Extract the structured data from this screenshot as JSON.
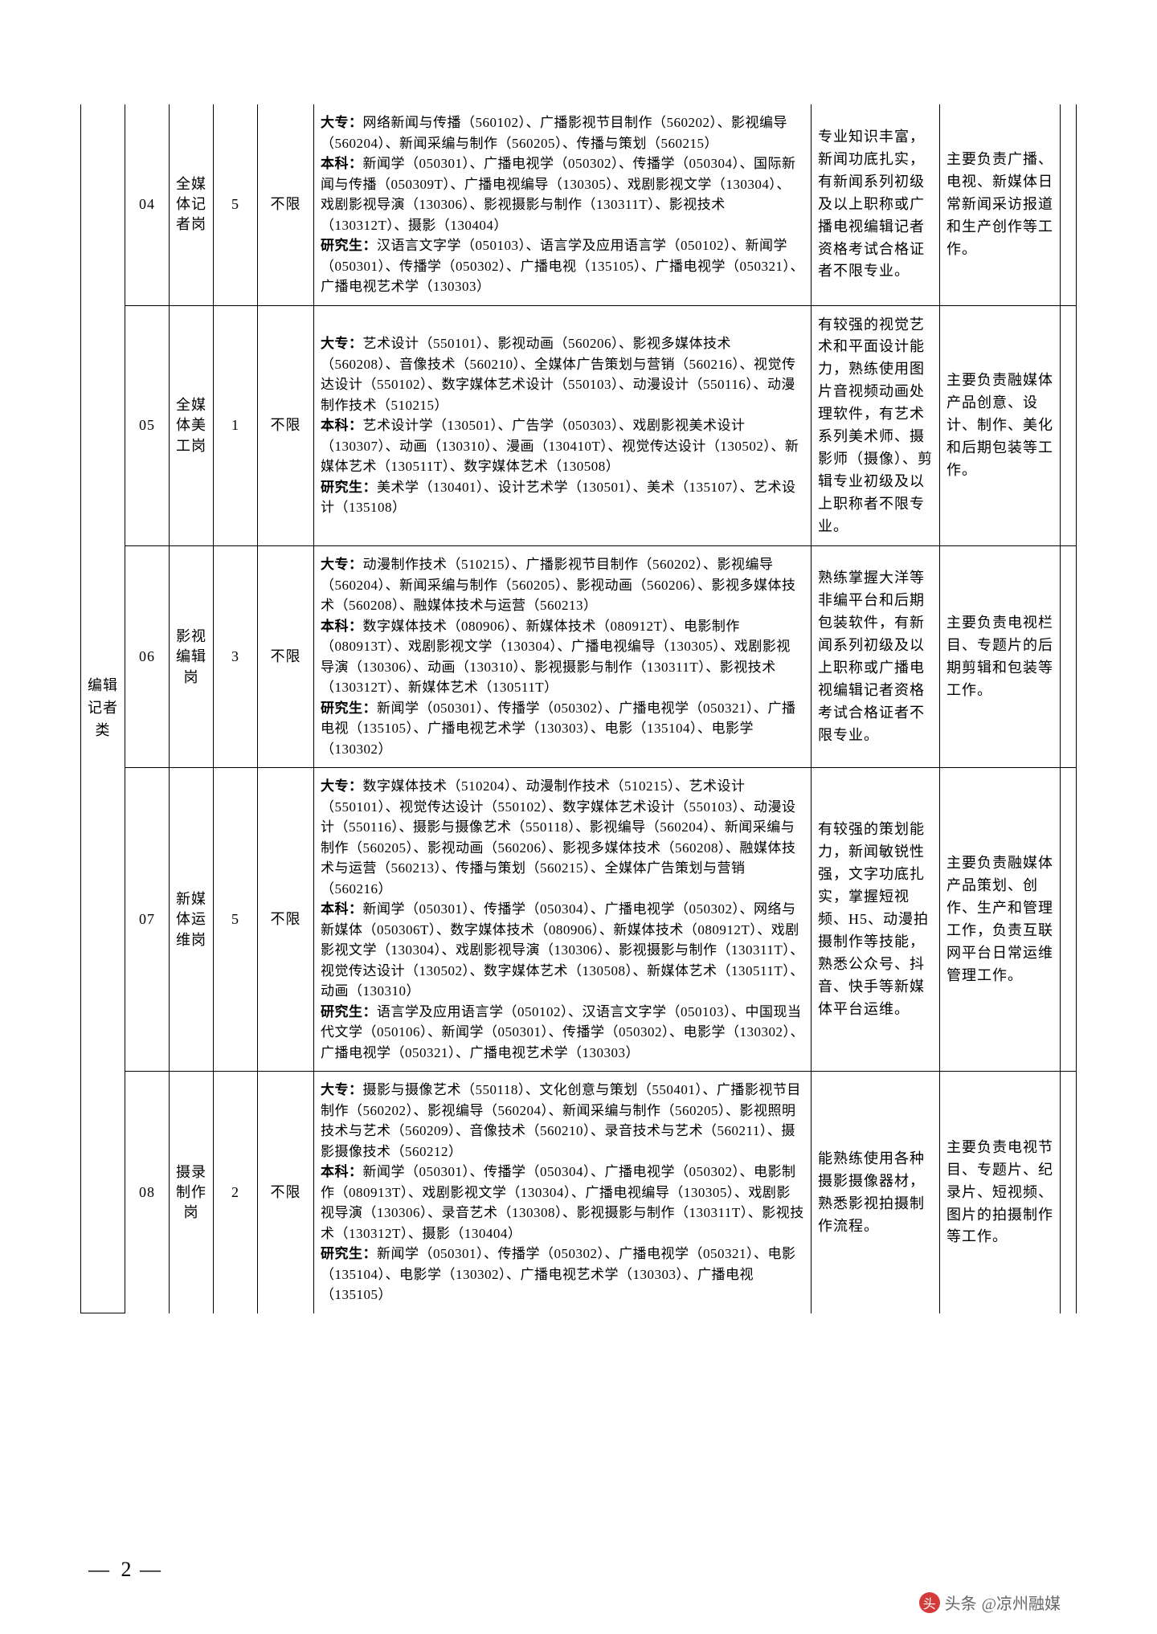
{
  "page_number": "2",
  "watermark": {
    "icon_text": "头",
    "label": "头条",
    "handle": "@凉州融媒"
  },
  "category_label": "编辑记者类",
  "colors": {
    "border": "#000000",
    "text": "#000000",
    "bg": "#ffffff",
    "wm_icon_bg": "#d43c3c",
    "wm_text": "#666666"
  },
  "labels": {
    "dazhuan": "大专：",
    "benke": "本科：",
    "yanjiusheng": "研究生："
  },
  "rows": [
    {
      "code": "04",
      "post": "全媒体记者岗",
      "num": "5",
      "gender": "不限",
      "major_dz": "网络新闻与传播（560102）、广播影视节目制作（560202）、影视编导（560204）、新闻采编与制作（560205）、传播与策划（560215）",
      "major_bk": "新闻学（050301）、广播电视学（050302）、传播学（050304）、国际新闻与传播（050309T）、广播电视编导（130305）、戏剧影视文学（130304）、戏剧影视导演（130306）、影视摄影与制作（130311T）、影视技术（130312T）、摄影（130404）",
      "major_yj": "汉语言文字学（050103）、语言学及应用语言学（050102）、新闻学（050301）、传播学（050302）、广播电视（135105）、广播电视学（050321）、广播电视艺术学（130303）",
      "req": "专业知识丰富，新闻功底扎实，有新闻系列初级及以上职称或广播电视编辑记者资格考试合格证者不限专业。",
      "duty": "主要负责广播、电视、新媒体日常新闻采访报道和生产创作等工作。"
    },
    {
      "code": "05",
      "post": "全媒体美工岗",
      "num": "1",
      "gender": "不限",
      "major_dz": "艺术设计（550101）、影视动画（560206）、影视多媒体技术（560208）、音像技术（560210）、全媒体广告策划与营销（560216）、视觉传达设计（550102）、数字媒体艺术设计（550103）、动漫设计（550116）、动漫制作技术（510215）",
      "major_bk": "艺术设计学（130501）、广告学（050303）、戏剧影视美术设计（130307）、动画（130310）、漫画（130410T）、视觉传达设计（130502）、新媒体艺术（130511T）、数字媒体艺术（130508）",
      "major_yj": "美术学（130401）、设计艺术学（130501）、美术（135107）、艺术设计（135108）",
      "req": "有较强的视觉艺术和平面设计能力，熟练使用图片音视频动画处理软件，有艺术系列美术师、摄影师（摄像）、剪辑专业初级及以上职称者不限专业。",
      "duty": "主要负责融媒体产品创意、设计、制作、美化和后期包装等工作。"
    },
    {
      "code": "06",
      "post": "影视编辑岗",
      "num": "3",
      "gender": "不限",
      "major_dz": "动漫制作技术（510215）、广播影视节目制作（560202）、影视编导（560204）、新闻采编与制作（560205）、影视动画（560206）、影视多媒体技术（560208）、融媒体技术与运营（560213）",
      "major_bk": "数字媒体技术（080906）、新媒体技术（080912T）、电影制作（080913T）、戏剧影视文学（130304）、广播电视编导（130305）、戏剧影视导演（130306）、动画（130310）、影视摄影与制作（130311T）、影视技术（130312T）、新媒体艺术（130511T）",
      "major_yj": "新闻学（050301）、传播学（050302）、广播电视学（050321）、广播电视（135105）、广播电视艺术学（130303）、电影（135104）、电影学（130302）",
      "req": "熟练掌握大洋等非编平台和后期包装软件，有新闻系列初级及以上职称或广播电视编辑记者资格考试合格证者不限专业。",
      "duty": "主要负责电视栏目、专题片的后期剪辑和包装等工作。"
    },
    {
      "code": "07",
      "post": "新媒体运维岗",
      "num": "5",
      "gender": "不限",
      "major_dz": "数字媒体技术（510204）、动漫制作技术（510215）、艺术设计（550101）、视觉传达设计（550102）、数字媒体艺术设计（550103）、动漫设计（550116）、摄影与摄像艺术（550118）、影视编导（560204）、新闻采编与制作（560205）、影视动画（560206）、影视多媒体技术（560208）、融媒体技术与运营（560213）、传播与策划（560215）、全媒体广告策划与营销（560216）",
      "major_bk": "新闻学（050301）、传播学（050304）、广播电视学（050302）、网络与新媒体（050306T）、数字媒体技术（080906）、新媒体技术（080912T）、戏剧影视文学（130304）、戏剧影视导演（130306）、影视摄影与制作（130311T）、视觉传达设计（130502）、数字媒体艺术（130508）、新媒体艺术（130511T）、动画（130310）",
      "major_yj": "语言学及应用语言学（050102）、汉语言文字学（050103）、中国现当代文学（050106）、新闻学（050301）、传播学（050302）、电影学（130302）、广播电视学（050321）、广播电视艺术学（130303）",
      "req": "有较强的策划能力，新闻敏锐性强，文字功底扎实，掌握短视频、H5、动漫拍摄制作等技能，熟悉公众号、抖音、快手等新媒体平台运维。",
      "duty": "主要负责融媒体产品策划、创作、生产和管理工作，负责互联网平台日常运维管理工作。"
    },
    {
      "code": "08",
      "post": "摄录制作岗",
      "num": "2",
      "gender": "不限",
      "major_dz": "摄影与摄像艺术（550118）、文化创意与策划（550401）、广播影视节目制作（560202）、影视编导（560204）、新闻采编与制作（560205）、影视照明技术与艺术（560209）、音像技术（560210）、录音技术与艺术（560211）、摄影摄像技术（560212）",
      "major_bk": "新闻学（050301）、传播学（050304）、广播电视学（050302）、电影制作（080913T）、戏剧影视文学（130304）、广播电视编导（130305）、戏剧影视导演（130306）、录音艺术（130308）、影视摄影与制作（130311T）、影视技术（130312T）、摄影（130404）",
      "major_yj": "新闻学（050301）、传播学（050302）、广播电视学（050321）、电影（135104）、电影学（130302）、广播电视艺术学（130303）、广播电视（135105）",
      "req": "能熟练使用各种摄影摄像器材，熟悉影视拍摄制作流程。",
      "duty": "主要负责电视节目、专题片、纪录片、短视频、图片的拍摄制作等工作。"
    }
  ]
}
